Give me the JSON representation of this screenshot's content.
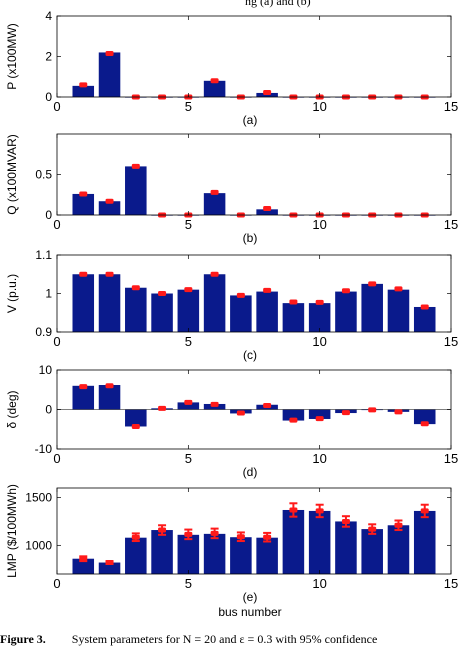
{
  "header_fragment": "ng  (a) and (b)",
  "caption": {
    "label": "Figure 3.",
    "text": "System parameters for N = 20 and ε = 0.3 with 95% confidence"
  },
  "colors": {
    "bar": "#0a1a8c",
    "marker": "#ff1a1a",
    "axis": "#000000"
  },
  "chart_data": [
    {
      "type": "bar",
      "panel_label": "(a)",
      "ylabel": "P (x100MW)",
      "xlabel": "",
      "xlim": [
        0,
        15
      ],
      "ylim": [
        0,
        4
      ],
      "xticks": [
        0,
        5,
        10,
        15
      ],
      "yticks": [
        0,
        2,
        4
      ],
      "categories": [
        1,
        2,
        3,
        4,
        5,
        6,
        7,
        8,
        9,
        10,
        11,
        12,
        13,
        14
      ],
      "values": [
        0.55,
        2.2,
        0,
        0,
        0,
        0.8,
        0,
        0.2,
        0,
        0,
        0,
        0,
        0,
        0
      ],
      "markers": [
        0.6,
        2.15,
        0,
        0,
        0,
        0.8,
        0,
        0.22,
        0,
        0,
        0,
        0,
        0,
        0
      ]
    },
    {
      "type": "bar",
      "panel_label": "(b)",
      "ylabel": "Q (x100MVAR)",
      "xlabel": "",
      "xlim": [
        0,
        15
      ],
      "ylim": [
        0,
        1
      ],
      "xticks": [
        0,
        5,
        10,
        15
      ],
      "yticks": [
        0,
        0.5
      ],
      "categories": [
        1,
        2,
        3,
        4,
        5,
        6,
        7,
        8,
        9,
        10,
        11,
        12,
        13,
        14
      ],
      "values": [
        0.26,
        0.17,
        0.6,
        0,
        0,
        0.27,
        0,
        0.07,
        0,
        0,
        0,
        0,
        0,
        0
      ],
      "markers": [
        0.26,
        0.17,
        0.6,
        0,
        0,
        0.28,
        0,
        0.08,
        0,
        0,
        0,
        0,
        0,
        0
      ]
    },
    {
      "type": "bar",
      "panel_label": "(c)",
      "ylabel": "V (p.u.)",
      "xlabel": "",
      "xlim": [
        0,
        15
      ],
      "ylim": [
        0.9,
        1.1
      ],
      "xticks": [
        0,
        5,
        10,
        15
      ],
      "yticks": [
        0.9,
        1,
        1.1
      ],
      "categories": [
        1,
        2,
        3,
        4,
        5,
        6,
        7,
        8,
        9,
        10,
        11,
        12,
        13,
        14
      ],
      "values": [
        1.05,
        1.05,
        1.015,
        1.0,
        1.01,
        1.05,
        0.995,
        1.005,
        0.975,
        0.975,
        1.005,
        1.025,
        1.01,
        0.965
      ],
      "markers": [
        1.05,
        1.05,
        1.015,
        1.0,
        1.01,
        1.05,
        0.995,
        1.008,
        0.978,
        0.977,
        1.007,
        1.025,
        1.012,
        0.965
      ]
    },
    {
      "type": "bar",
      "panel_label": "(d)",
      "ylabel": "δ (deg)",
      "xlabel": "",
      "xlim": [
        0,
        15
      ],
      "ylim": [
        -10,
        10
      ],
      "xticks": [
        0,
        5,
        10,
        15
      ],
      "yticks": [
        -10,
        0,
        10
      ],
      "categories": [
        1,
        2,
        3,
        4,
        5,
        6,
        7,
        8,
        9,
        10,
        11,
        12,
        13,
        14
      ],
      "values": [
        6.0,
        6.2,
        -4.3,
        0.3,
        1.8,
        1.4,
        -1.0,
        1.2,
        -2.8,
        -2.4,
        -0.9,
        -0.1,
        -0.6,
        -3.7
      ],
      "markers": [
        5.8,
        6.0,
        -4.3,
        0.3,
        1.8,
        1.3,
        -0.9,
        1.0,
        -2.7,
        -2.3,
        -0.8,
        -0.1,
        -0.6,
        -3.6
      ]
    },
    {
      "type": "bar",
      "panel_label": "(e)",
      "ylabel": "LMP ($/100MWh)",
      "xlabel": "bus number",
      "xlim": [
        0,
        15
      ],
      "ylim": [
        700,
        1600
      ],
      "xticks": [
        0,
        5,
        10,
        15
      ],
      "yticks": [
        1000,
        1500
      ],
      "categories": [
        1,
        2,
        3,
        4,
        5,
        6,
        7,
        8,
        9,
        10,
        11,
        12,
        13,
        14
      ],
      "values": [
        860,
        820,
        1080,
        1160,
        1110,
        1120,
        1085,
        1080,
        1370,
        1360,
        1250,
        1170,
        1210,
        1360
      ],
      "markers": [
        860,
        820,
        1085,
        1160,
        1115,
        1125,
        1090,
        1085,
        1370,
        1360,
        1250,
        1170,
        1210,
        1360
      ],
      "error": [
        25,
        15,
        40,
        50,
        50,
        50,
        45,
        45,
        70,
        65,
        55,
        50,
        50,
        65
      ]
    }
  ]
}
